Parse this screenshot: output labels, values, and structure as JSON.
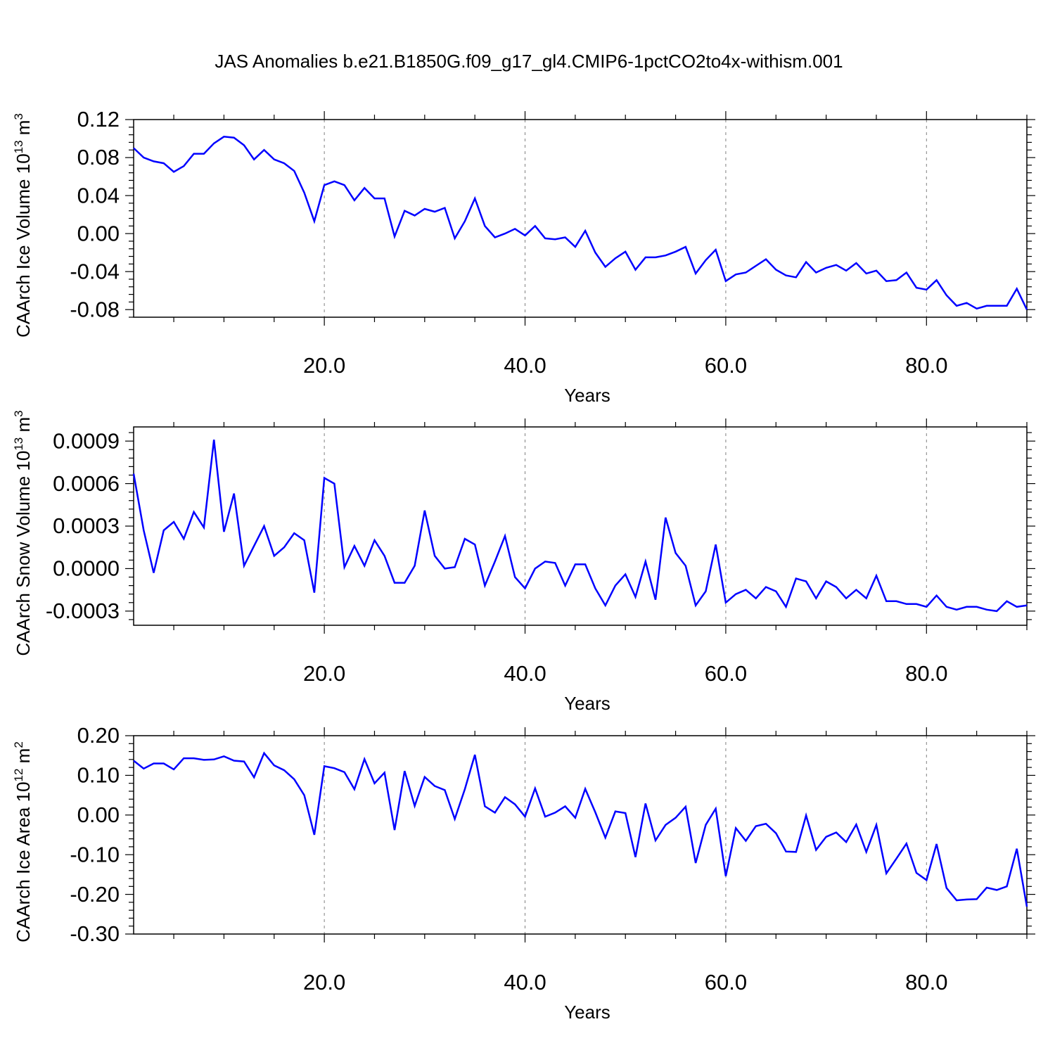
{
  "title": "JAS Anomalies b.e21.B1850G.f09_g17_gl4.CMIP6-1pctCO2to4x-withism.001",
  "colors": {
    "line": "#0000ff",
    "axes": "#000000",
    "grid": "#808080"
  },
  "chart_data": [
    {
      "type": "line",
      "ylabel": {
        "text": "CAArch Ice Volume 10",
        "sup": "13",
        "unit": " m",
        "unit_sup": "3"
      },
      "xlabel": "Years",
      "xlim": [
        1,
        90
      ],
      "ylim": [
        -0.088,
        0.12
      ],
      "xticks": [
        20,
        40,
        60,
        80
      ],
      "xtick_labels": [
        "20.0",
        "40.0",
        "60.0",
        "80.0"
      ],
      "yticks": [
        -0.08,
        -0.04,
        0.0,
        0.04,
        0.08,
        0.12
      ],
      "ytick_labels": [
        "-0.08",
        "-0.04",
        "0.00",
        "0.04",
        "0.08",
        "0.12"
      ],
      "grid": "vertical dashed at x ticks",
      "x_start": 1,
      "series": [
        {
          "values": [
            0.09,
            0.08,
            0.076,
            0.074,
            0.065,
            0.071,
            0.084,
            0.084,
            0.095,
            0.102,
            0.101,
            0.093,
            0.078,
            0.088,
            0.078,
            0.074,
            0.066,
            0.043,
            0.013,
            0.051,
            0.055,
            0.051,
            0.035,
            0.048,
            0.037,
            0.037,
            -0.003,
            0.024,
            0.019,
            0.026,
            0.023,
            0.027,
            -0.005,
            0.013,
            0.037,
            0.008,
            -0.004,
            0.0,
            0.005,
            -0.002,
            0.008,
            -0.005,
            -0.006,
            -0.004,
            -0.014,
            0.003,
            -0.02,
            -0.035,
            -0.026,
            -0.019,
            -0.038,
            -0.025,
            -0.025,
            -0.023,
            -0.019,
            -0.014,
            -0.042,
            -0.028,
            -0.017,
            -0.05,
            -0.043,
            -0.041,
            -0.034,
            -0.027,
            -0.038,
            -0.044,
            -0.046,
            -0.03,
            -0.041,
            -0.036,
            -0.033,
            -0.039,
            -0.031,
            -0.042,
            -0.039,
            -0.05,
            -0.049,
            -0.041,
            -0.057,
            -0.059,
            -0.049,
            -0.065,
            -0.076,
            -0.073,
            -0.079,
            -0.076,
            -0.076,
            -0.076,
            -0.058,
            -0.08
          ]
        }
      ]
    },
    {
      "type": "line",
      "ylabel": {
        "text": "CAArch Snow Volume 10",
        "sup": "13",
        "unit": " m",
        "unit_sup": "3"
      },
      "xlabel": "Years",
      "xlim": [
        1,
        90
      ],
      "ylim": [
        -0.0004,
        0.001
      ],
      "xticks": [
        20,
        40,
        60,
        80
      ],
      "xtick_labels": [
        "20.0",
        "40.0",
        "60.0",
        "80.0"
      ],
      "yticks": [
        -0.0003,
        0.0,
        0.0003,
        0.0006,
        0.0009
      ],
      "ytick_labels": [
        "-0.0003",
        "0.0000",
        "0.0003",
        "0.0006",
        "0.0009"
      ],
      "grid": "vertical dashed at x ticks",
      "x_start": 1,
      "series": [
        {
          "values": [
            0.00067,
            0.00027,
            -3e-05,
            0.00027,
            0.00033,
            0.00021,
            0.0004,
            0.00029,
            0.00091,
            0.00026,
            0.00053,
            2e-05,
            0.00016,
            0.0003,
            9e-05,
            0.00015,
            0.00025,
            0.0002,
            -0.00017,
            0.00064,
            0.0006,
            1e-05,
            0.00016,
            2e-05,
            0.0002,
            9e-05,
            -0.0001,
            -0.0001,
            2e-05,
            0.00041,
            9e-05,
            0.0,
            1e-05,
            0.00021,
            0.00017,
            -0.00012,
            5e-05,
            0.00023,
            -6e-05,
            -0.00014,
            0.0,
            5e-05,
            4e-05,
            -0.00012,
            3e-05,
            3e-05,
            -0.00014,
            -0.00026,
            -0.00012,
            -4e-05,
            -0.0002,
            5e-05,
            -0.00022,
            0.00036,
            0.00011,
            2e-05,
            -0.00026,
            -0.00016,
            0.00017,
            -0.00024,
            -0.00018,
            -0.00015,
            -0.00021,
            -0.00013,
            -0.00016,
            -0.00027,
            -7e-05,
            -9e-05,
            -0.00021,
            -9e-05,
            -0.00013,
            -0.00021,
            -0.00015,
            -0.00021,
            -5e-05,
            -0.00023,
            -0.00023,
            -0.00025,
            -0.00025,
            -0.00027,
            -0.00019,
            -0.00027,
            -0.00029,
            -0.00027,
            -0.00027,
            -0.00029,
            -0.0003,
            -0.00023,
            -0.00027,
            -0.00026
          ]
        }
      ]
    },
    {
      "type": "line",
      "ylabel": {
        "text": "CAArch Ice Area 10",
        "sup": "12",
        "unit": " m",
        "unit_sup": "2"
      },
      "xlabel": "Years",
      "xlim": [
        1,
        90
      ],
      "ylim": [
        -0.3,
        0.2
      ],
      "xticks": [
        20,
        40,
        60,
        80
      ],
      "xtick_labels": [
        "20.0",
        "40.0",
        "60.0",
        "80.0"
      ],
      "yticks": [
        -0.3,
        -0.2,
        -0.1,
        0.0,
        0.1,
        0.2
      ],
      "ytick_labels": [
        "-0.30",
        "-0.20",
        "-0.10",
        "0.00",
        "0.10",
        "0.20"
      ],
      "grid": "vertical dashed at x ticks",
      "x_start": 1,
      "series": [
        {
          "values": [
            0.137,
            0.117,
            0.13,
            0.13,
            0.115,
            0.143,
            0.143,
            0.139,
            0.14,
            0.148,
            0.137,
            0.135,
            0.095,
            0.156,
            0.125,
            0.113,
            0.09,
            0.05,
            -0.05,
            0.123,
            0.118,
            0.108,
            0.065,
            0.141,
            0.08,
            0.107,
            -0.038,
            0.111,
            0.023,
            0.096,
            0.073,
            0.063,
            -0.01,
            0.065,
            0.152,
            0.022,
            0.006,
            0.045,
            0.027,
            -0.004,
            0.067,
            -0.004,
            0.006,
            0.022,
            -0.007,
            0.066,
            0.007,
            -0.057,
            0.009,
            0.005,
            -0.106,
            0.029,
            -0.064,
            -0.025,
            -0.007,
            0.021,
            -0.121,
            -0.025,
            0.016,
            -0.154,
            -0.033,
            -0.065,
            -0.028,
            -0.022,
            -0.046,
            -0.092,
            -0.093,
            -0.001,
            -0.088,
            -0.055,
            -0.044,
            -0.068,
            -0.024,
            -0.093,
            -0.025,
            -0.147,
            -0.11,
            -0.072,
            -0.146,
            -0.164,
            -0.073,
            -0.184,
            -0.215,
            -0.213,
            -0.212,
            -0.183,
            -0.189,
            -0.18,
            -0.085,
            -0.231
          ]
        }
      ]
    }
  ]
}
